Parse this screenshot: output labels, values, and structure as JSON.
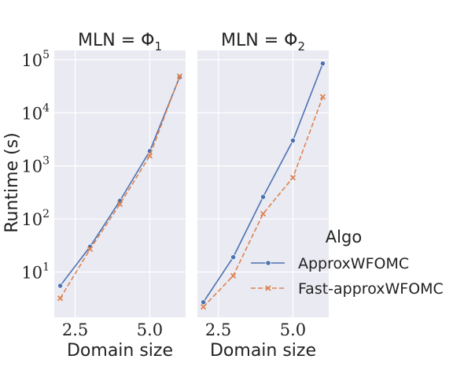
{
  "chart_data": {
    "type": "line",
    "y_scale": "log",
    "ylim": [
      1.4,
      150000
    ],
    "ylabel": "Runtime (s)",
    "xlabel": "Domain size",
    "x_ticks": [
      "2.5",
      "5.0"
    ],
    "y_ticks": [
      {
        "value": 10,
        "base": "10",
        "exp": "1"
      },
      {
        "value": 100,
        "base": "10",
        "exp": "2"
      },
      {
        "value": 1000,
        "base": "10",
        "exp": "3"
      },
      {
        "value": 10000,
        "base": "10",
        "exp": "4"
      },
      {
        "value": 100000,
        "base": "10",
        "exp": "5"
      }
    ],
    "grid": true,
    "legend": {
      "title": "Algo",
      "placement": "right",
      "entries": [
        "ApproxWFOMC",
        "Fast-approxWFOMC"
      ]
    },
    "series_styles": [
      {
        "name": "ApproxWFOMC",
        "color": "#4c72b0",
        "dash": "none",
        "marker": "circle"
      },
      {
        "name": "Fast-approxWFOMC",
        "color": "#dd8452",
        "dash": "6,3",
        "marker": "x"
      }
    ],
    "panels": [
      {
        "title_prefix": "MLN = Φ",
        "title_sub": "1",
        "x": [
          2,
          3,
          4,
          5,
          6
        ],
        "xlim": [
          1.8,
          6.2
        ],
        "series": [
          {
            "name": "ApproxWFOMC",
            "values": [
              5.5,
              30,
              220,
              1900,
              47000
            ]
          },
          {
            "name": "Fast-approxWFOMC",
            "values": [
              3.2,
              27,
              190,
              1550,
              49000
            ]
          }
        ]
      },
      {
        "title_prefix": "MLN = Φ",
        "title_sub": "2",
        "x": [
          2,
          3,
          4,
          5,
          6
        ],
        "xlim": [
          1.8,
          6.2
        ],
        "series": [
          {
            "name": "ApproxWFOMC",
            "values": [
              2.7,
              19,
              260,
              3000,
              85000
            ]
          },
          {
            "name": "Fast-approxWFOMC",
            "values": [
              2.2,
              8.5,
              125,
              600,
              20000
            ]
          }
        ]
      }
    ]
  }
}
